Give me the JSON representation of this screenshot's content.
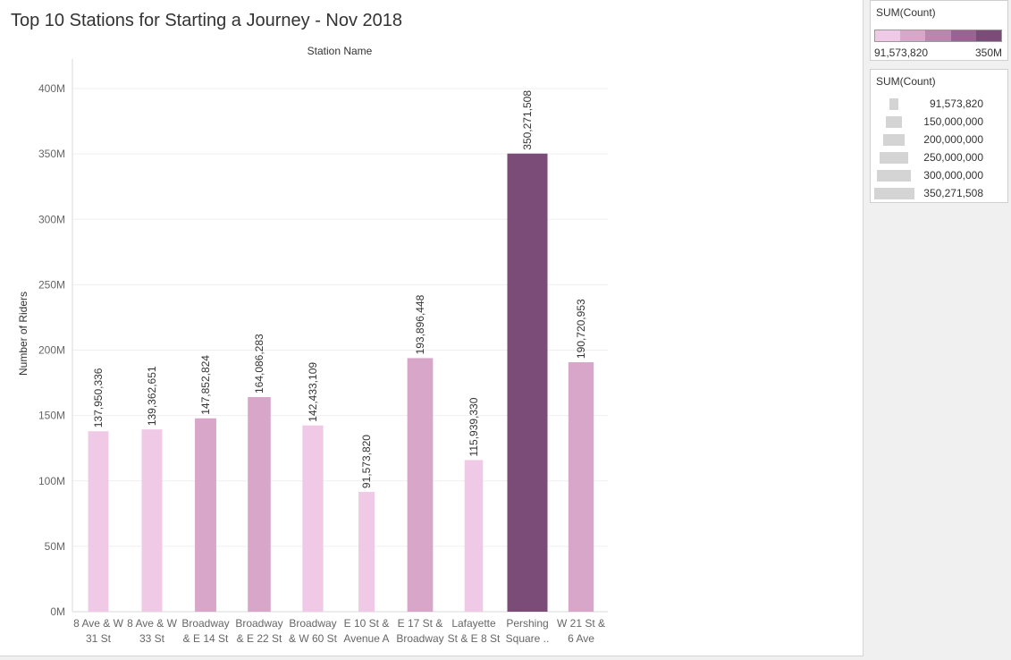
{
  "title": "Top 10 Stations for Starting a Journey - Nov 2018",
  "colors": {
    "ramp": [
      "#efc9e5",
      "#d7a6c9",
      "#ba86ad",
      "#9b6393",
      "#7b4c78"
    ],
    "grid": "#efefef",
    "axis": "#d9d9d9"
  },
  "chart_data": {
    "type": "bar",
    "title": "Top 10 Stations for Starting a Journey - Nov 2018",
    "xlabel": "Station Name",
    "ylabel": "Number of Riders",
    "ylim": [
      0,
      400000000
    ],
    "yticks": [
      {
        "value": 0,
        "label": "0M"
      },
      {
        "value": 50000000,
        "label": "50M"
      },
      {
        "value": 100000000,
        "label": "100M"
      },
      {
        "value": 150000000,
        "label": "150M"
      },
      {
        "value": 200000000,
        "label": "200M"
      },
      {
        "value": 250000000,
        "label": "250M"
      },
      {
        "value": 300000000,
        "label": "300M"
      },
      {
        "value": 350000000,
        "label": "350M"
      },
      {
        "value": 400000000,
        "label": "400M"
      }
    ],
    "grid": true,
    "legend_position": "right",
    "categories": [
      [
        "8 Ave & W",
        "31 St"
      ],
      [
        "8 Ave & W",
        "33 St"
      ],
      [
        "Broadway",
        "& E 14 St"
      ],
      [
        "Broadway",
        "& E 22 St"
      ],
      [
        "Broadway",
        "& W 60 St"
      ],
      [
        "E 10 St &",
        "Avenue A"
      ],
      [
        "E 17 St &",
        "Broadway"
      ],
      [
        "Lafayette",
        "St & E 8 St"
      ],
      [
        "Pershing",
        "Square .."
      ],
      [
        "W 21 St &",
        "6 Ave"
      ]
    ],
    "values": [
      137950336,
      139362651,
      147852824,
      164086283,
      142433109,
      91573820,
      193896448,
      115939330,
      350271508,
      190720953
    ],
    "value_labels": [
      "137,950,336",
      "139,362,651",
      "147,852,824",
      "164,086,283",
      "142,433,109",
      "91,573,820",
      "193,896,448",
      "115,939,330",
      "350,271,508",
      "190,720,953"
    ]
  },
  "color_legend": {
    "title": "SUM(Count)",
    "min_label": "91,573,820",
    "max_label": "350M",
    "min": 91573820,
    "max": 350000000
  },
  "size_legend": {
    "title": "SUM(Count)",
    "items": [
      {
        "label": "91,573,820",
        "value": 91573820
      },
      {
        "label": "150,000,000",
        "value": 150000000
      },
      {
        "label": "200,000,000",
        "value": 200000000
      },
      {
        "label": "250,000,000",
        "value": 250000000
      },
      {
        "label": "300,000,000",
        "value": 300000000
      },
      {
        "label": "350,271,508",
        "value": 350271508
      }
    ]
  }
}
